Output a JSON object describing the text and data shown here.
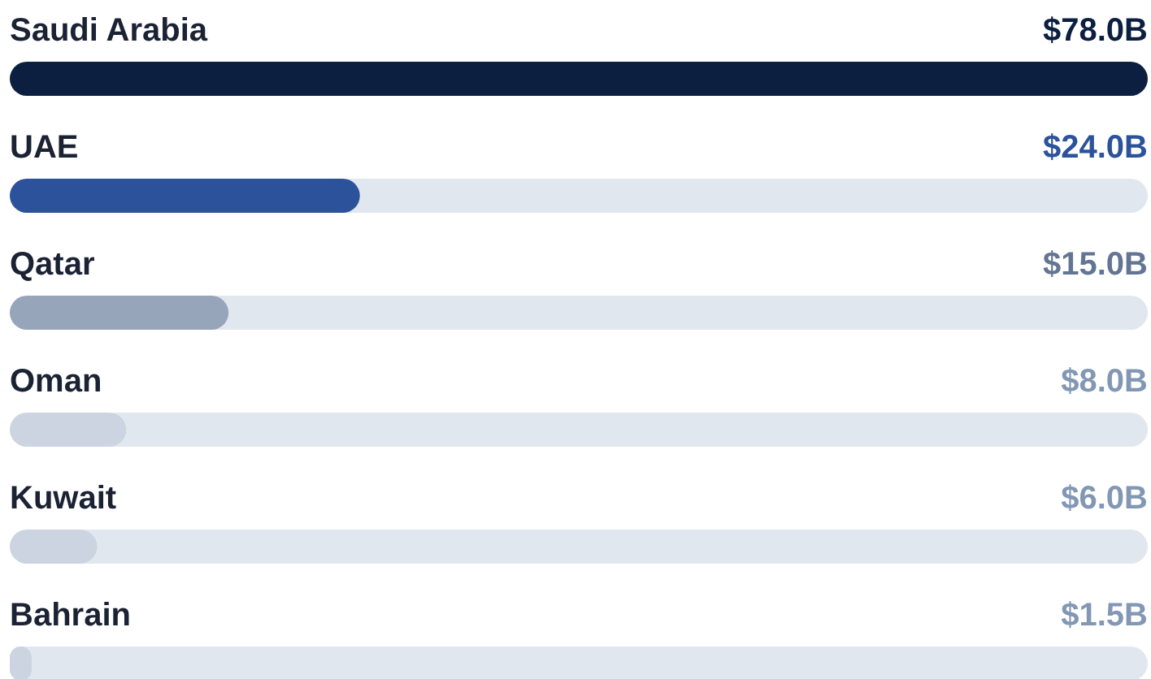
{
  "chart_data": {
    "type": "bar",
    "orientation": "horizontal",
    "categories": [
      "Saudi Arabia",
      "UAE",
      "Qatar",
      "Oman",
      "Kuwait",
      "Bahrain"
    ],
    "values": [
      78,
      24,
      15,
      8,
      6,
      1.5
    ],
    "colors": [
      "#0c1f40",
      "#2b529a",
      "#97a5ba",
      "#cbd4e0",
      "#cbd4e0",
      "#cbd4e0"
    ],
    "value_labels": [
      "$78.0B",
      "$24.0B",
      "$15.0B",
      "$8.0B",
      "$6.0B",
      "$1.5B"
    ]
  }
}
